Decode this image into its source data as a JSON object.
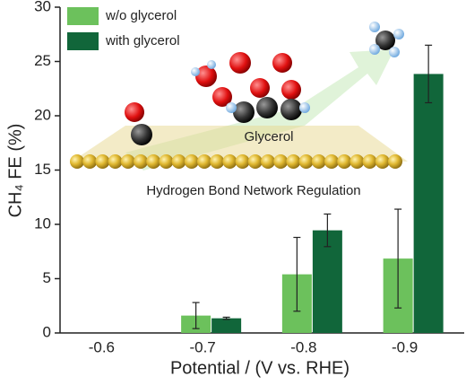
{
  "chart_data": {
    "type": "bar",
    "x_label": "Potential / (V vs. RHE)",
    "y_label": "CH₄ FE (%)",
    "categories": [
      "-0.6",
      "-0.7",
      "-0.8",
      "-0.9"
    ],
    "series": [
      {
        "name": "w/o glycerol",
        "color": "#6cc15c",
        "values": [
          null,
          1.6,
          5.4,
          6.85
        ],
        "errors": [
          null,
          1.2,
          3.4,
          4.55
        ]
      },
      {
        "name": "with glycerol",
        "color": "#11663a",
        "values": [
          null,
          1.35,
          9.45,
          23.85
        ],
        "errors": [
          null,
          0.1,
          1.5,
          2.65
        ]
      }
    ],
    "ylim": [
      0,
      30
    ],
    "yticks": [
      0,
      5,
      10,
      15,
      20,
      25,
      30
    ],
    "legend": "upper left",
    "annotations": [
      "Glycerol",
      "Hydrogen Bond Network Regulation"
    ]
  }
}
